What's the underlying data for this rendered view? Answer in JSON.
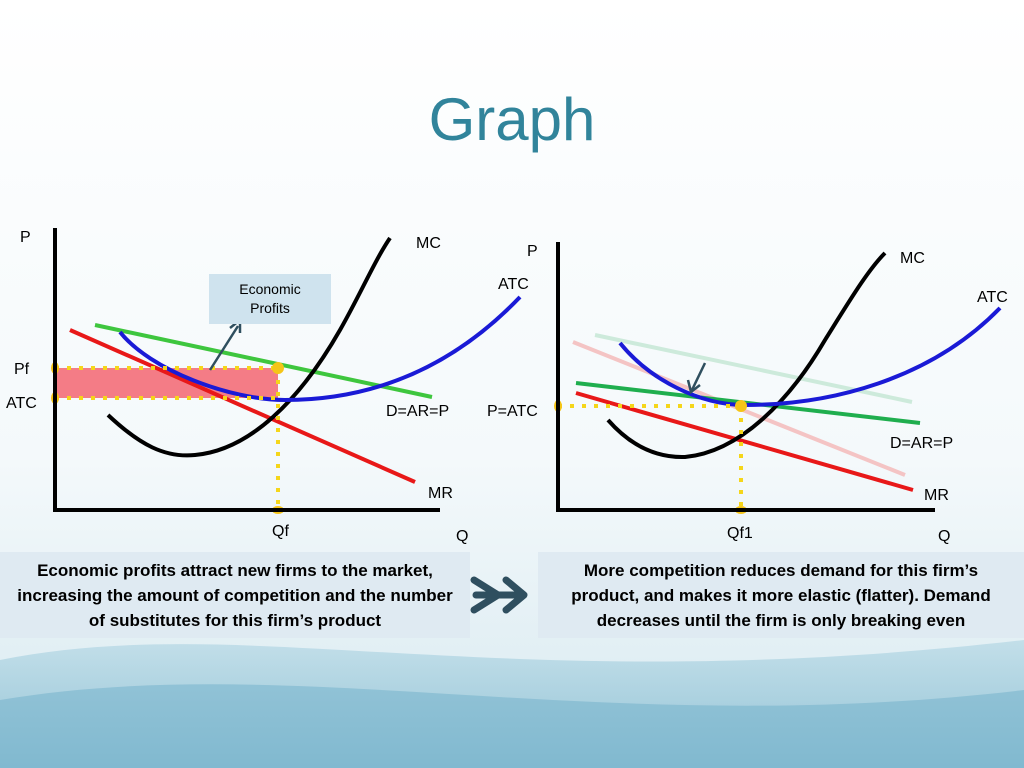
{
  "title": "Graph",
  "left_graph": {
    "y_axis": "P",
    "x_axis": "Q",
    "mc_label": "MC",
    "atc_curve_label": "ATC",
    "callout": "Economic Profits",
    "price_label": "Pf",
    "atc_label": "ATC",
    "demand_label": "D=AR=P",
    "mr_label": "MR",
    "quantity_label": "Qf"
  },
  "right_graph": {
    "y_axis": "P",
    "x_axis": "Q",
    "mc_label": "MC",
    "atc_curve_label": "ATC",
    "price_label": "P=ATC",
    "demand_label": "D=AR=P",
    "mr_label": "MR",
    "quantity_label": "Qf1"
  },
  "captions": [
    "Economic profits attract new firms to the market, increasing the amount of competition and the number of substitutes for this firm’s product",
    "More competition reduces demand for this firm’s product, and makes it more elastic (flatter). Demand decreases until the firm is only breaking even"
  ]
}
